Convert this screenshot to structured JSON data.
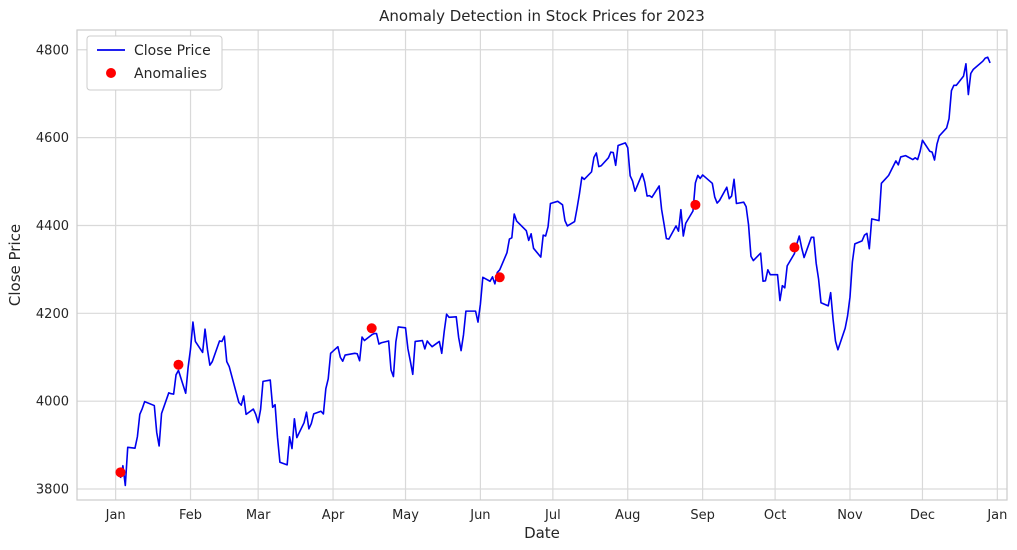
{
  "chart_data": {
    "type": "line",
    "title": "Anomaly Detection in Stock Prices for 2023",
    "xlabel": "Date",
    "ylabel": "Close Price",
    "x_ticks": [
      "Jan",
      "Feb",
      "Mar",
      "Apr",
      "May",
      "Jun",
      "Jul",
      "Aug",
      "Sep",
      "Oct",
      "Nov",
      "Dec",
      "Jan"
    ],
    "x_tick_dates": [
      "2023-01-01",
      "2023-02-01",
      "2023-03-01",
      "2023-04-01",
      "2023-05-01",
      "2023-06-01",
      "2023-07-01",
      "2023-08-01",
      "2023-09-01",
      "2023-10-01",
      "2023-11-01",
      "2023-12-01",
      "2024-01-01"
    ],
    "y_ticks": [
      3800,
      4000,
      4200,
      4400,
      4600,
      4800
    ],
    "xlim": [
      "2022-12-16",
      "2024-01-05"
    ],
    "ylim": [
      3775,
      4845
    ],
    "grid": true,
    "legend": "top-left",
    "series": [
      {
        "name": "Close Price",
        "color": "#0000ee",
        "points": [
          [
            "2023-01-03",
            3825
          ],
          [
            "2023-01-04",
            3853
          ],
          [
            "2023-01-05",
            3808
          ],
          [
            "2023-01-06",
            3895
          ],
          [
            "2023-01-09",
            3893
          ],
          [
            "2023-01-10",
            3919
          ],
          [
            "2023-01-11",
            3970
          ],
          [
            "2023-01-12",
            3983
          ],
          [
            "2023-01-13",
            3999
          ],
          [
            "2023-01-17",
            3990
          ],
          [
            "2023-01-18",
            3929
          ],
          [
            "2023-01-19",
            3898
          ],
          [
            "2023-01-20",
            3972
          ],
          [
            "2023-01-23",
            4019
          ],
          [
            "2023-01-24",
            4017
          ],
          [
            "2023-01-25",
            4016
          ],
          [
            "2023-01-26",
            4060
          ],
          [
            "2023-01-27",
            4070
          ],
          [
            "2023-01-30",
            4018
          ],
          [
            "2023-01-31",
            4077
          ],
          [
            "2023-02-01",
            4119
          ],
          [
            "2023-02-02",
            4180
          ],
          [
            "2023-02-03",
            4136
          ],
          [
            "2023-02-06",
            4111
          ],
          [
            "2023-02-07",
            4164
          ],
          [
            "2023-02-08",
            4118
          ],
          [
            "2023-02-09",
            4082
          ],
          [
            "2023-02-10",
            4090
          ],
          [
            "2023-02-13",
            4137
          ],
          [
            "2023-02-14",
            4136
          ],
          [
            "2023-02-15",
            4148
          ],
          [
            "2023-02-16",
            4090
          ],
          [
            "2023-02-17",
            4079
          ],
          [
            "2023-02-21",
            3997
          ],
          [
            "2023-02-22",
            3991
          ],
          [
            "2023-02-23",
            4012
          ],
          [
            "2023-02-24",
            3970
          ],
          [
            "2023-02-27",
            3982
          ],
          [
            "2023-02-28",
            3970
          ],
          [
            "2023-03-01",
            3951
          ],
          [
            "2023-03-02",
            3981
          ],
          [
            "2023-03-03",
            4045
          ],
          [
            "2023-03-06",
            4048
          ],
          [
            "2023-03-07",
            3986
          ],
          [
            "2023-03-08",
            3992
          ],
          [
            "2023-03-09",
            3918
          ],
          [
            "2023-03-10",
            3861
          ],
          [
            "2023-03-13",
            3855
          ],
          [
            "2023-03-14",
            3919
          ],
          [
            "2023-03-15",
            3892
          ],
          [
            "2023-03-16",
            3960
          ],
          [
            "2023-03-17",
            3917
          ],
          [
            "2023-03-20",
            3951
          ],
          [
            "2023-03-21",
            3975
          ],
          [
            "2023-03-22",
            3937
          ],
          [
            "2023-03-23",
            3949
          ],
          [
            "2023-03-24",
            3971
          ],
          [
            "2023-03-27",
            3977
          ],
          [
            "2023-03-28",
            3971
          ],
          [
            "2023-03-29",
            4028
          ],
          [
            "2023-03-30",
            4051
          ],
          [
            "2023-03-31",
            4109
          ],
          [
            "2023-04-03",
            4124
          ],
          [
            "2023-04-04",
            4100
          ],
          [
            "2023-04-05",
            4091
          ],
          [
            "2023-04-06",
            4105
          ],
          [
            "2023-04-10",
            4109
          ],
          [
            "2023-04-11",
            4108
          ],
          [
            "2023-04-12",
            4092
          ],
          [
            "2023-04-13",
            4146
          ],
          [
            "2023-04-14",
            4138
          ],
          [
            "2023-04-17",
            4151
          ],
          [
            "2023-04-18",
            4154
          ],
          [
            "2023-04-19",
            4154
          ],
          [
            "2023-04-20",
            4130
          ],
          [
            "2023-04-21",
            4133
          ],
          [
            "2023-04-24",
            4137
          ],
          [
            "2023-04-25",
            4071
          ],
          [
            "2023-04-26",
            4056
          ],
          [
            "2023-04-27",
            4135
          ],
          [
            "2023-04-28",
            4169
          ],
          [
            "2023-05-01",
            4167
          ],
          [
            "2023-05-02",
            4119
          ],
          [
            "2023-05-03",
            4091
          ],
          [
            "2023-05-04",
            4061
          ],
          [
            "2023-05-05",
            4136
          ],
          [
            "2023-05-08",
            4138
          ],
          [
            "2023-05-09",
            4119
          ],
          [
            "2023-05-10",
            4137
          ],
          [
            "2023-05-11",
            4130
          ],
          [
            "2023-05-12",
            4124
          ],
          [
            "2023-05-15",
            4136
          ],
          [
            "2023-05-16",
            4109
          ],
          [
            "2023-05-17",
            4158
          ],
          [
            "2023-05-18",
            4198
          ],
          [
            "2023-05-19",
            4191
          ],
          [
            "2023-05-22",
            4192
          ],
          [
            "2023-05-23",
            4145
          ],
          [
            "2023-05-24",
            4115
          ],
          [
            "2023-05-25",
            4151
          ],
          [
            "2023-05-26",
            4205
          ],
          [
            "2023-05-30",
            4205
          ],
          [
            "2023-05-31",
            4180
          ],
          [
            "2023-06-01",
            4221
          ],
          [
            "2023-06-02",
            4282
          ],
          [
            "2023-06-05",
            4273
          ],
          [
            "2023-06-06",
            4283
          ],
          [
            "2023-06-07",
            4267
          ],
          [
            "2023-06-08",
            4293
          ],
          [
            "2023-06-09",
            4299
          ],
          [
            "2023-06-12",
            4338
          ],
          [
            "2023-06-13",
            4369
          ],
          [
            "2023-06-14",
            4372
          ],
          [
            "2023-06-15",
            4426
          ],
          [
            "2023-06-16",
            4410
          ],
          [
            "2023-06-20",
            4388
          ],
          [
            "2023-06-21",
            4366
          ],
          [
            "2023-06-22",
            4381
          ],
          [
            "2023-06-23",
            4348
          ],
          [
            "2023-06-26",
            4328
          ],
          [
            "2023-06-27",
            4378
          ],
          [
            "2023-06-28",
            4376
          ],
          [
            "2023-06-29",
            4397
          ],
          [
            "2023-06-30",
            4450
          ],
          [
            "2023-07-03",
            4455
          ],
          [
            "2023-07-05",
            4447
          ],
          [
            "2023-07-06",
            4411
          ],
          [
            "2023-07-07",
            4399
          ],
          [
            "2023-07-10",
            4409
          ],
          [
            "2023-07-11",
            4439
          ],
          [
            "2023-07-12",
            4472
          ],
          [
            "2023-07-13",
            4510
          ],
          [
            "2023-07-14",
            4505
          ],
          [
            "2023-07-17",
            4522
          ],
          [
            "2023-07-18",
            4555
          ],
          [
            "2023-07-19",
            4565
          ],
          [
            "2023-07-20",
            4534
          ],
          [
            "2023-07-21",
            4536
          ],
          [
            "2023-07-24",
            4554
          ],
          [
            "2023-07-25",
            4567
          ],
          [
            "2023-07-26",
            4566
          ],
          [
            "2023-07-27",
            4537
          ],
          [
            "2023-07-28",
            4582
          ],
          [
            "2023-07-31",
            4588
          ],
          [
            "2023-08-01",
            4577
          ],
          [
            "2023-08-02",
            4513
          ],
          [
            "2023-08-03",
            4501
          ],
          [
            "2023-08-04",
            4478
          ],
          [
            "2023-08-07",
            4518
          ],
          [
            "2023-08-08",
            4499
          ],
          [
            "2023-08-09",
            4467
          ],
          [
            "2023-08-10",
            4468
          ],
          [
            "2023-08-11",
            4464
          ],
          [
            "2023-08-14",
            4490
          ],
          [
            "2023-08-15",
            4437
          ],
          [
            "2023-08-16",
            4404
          ],
          [
            "2023-08-17",
            4370
          ],
          [
            "2023-08-18",
            4369
          ],
          [
            "2023-08-21",
            4399
          ],
          [
            "2023-08-22",
            4387
          ],
          [
            "2023-08-23",
            4436
          ],
          [
            "2023-08-24",
            4376
          ],
          [
            "2023-08-25",
            4405
          ],
          [
            "2023-08-28",
            4433
          ],
          [
            "2023-08-29",
            4497
          ],
          [
            "2023-08-30",
            4514
          ],
          [
            "2023-08-31",
            4507
          ],
          [
            "2023-09-01",
            4515
          ],
          [
            "2023-09-05",
            4496
          ],
          [
            "2023-09-06",
            4465
          ],
          [
            "2023-09-07",
            4451
          ],
          [
            "2023-09-08",
            4457
          ],
          [
            "2023-09-11",
            4487
          ],
          [
            "2023-09-12",
            4461
          ],
          [
            "2023-09-13",
            4467
          ],
          [
            "2023-09-14",
            4505
          ],
          [
            "2023-09-15",
            4450
          ],
          [
            "2023-09-18",
            4453
          ],
          [
            "2023-09-19",
            4443
          ],
          [
            "2023-09-20",
            4402
          ],
          [
            "2023-09-21",
            4330
          ],
          [
            "2023-09-22",
            4320
          ],
          [
            "2023-09-25",
            4337
          ],
          [
            "2023-09-26",
            4273
          ],
          [
            "2023-09-27",
            4274
          ],
          [
            "2023-09-28",
            4299
          ],
          [
            "2023-09-29",
            4288
          ],
          [
            "2023-10-02",
            4288
          ],
          [
            "2023-10-03",
            4229
          ],
          [
            "2023-10-04",
            4263
          ],
          [
            "2023-10-05",
            4258
          ],
          [
            "2023-10-06",
            4308
          ],
          [
            "2023-10-09",
            4336
          ],
          [
            "2023-10-10",
            4358
          ],
          [
            "2023-10-11",
            4376
          ],
          [
            "2023-10-12",
            4349
          ],
          [
            "2023-10-13",
            4327
          ],
          [
            "2023-10-16",
            4373
          ],
          [
            "2023-10-17",
            4373
          ],
          [
            "2023-10-18",
            4314
          ],
          [
            "2023-10-19",
            4278
          ],
          [
            "2023-10-20",
            4224
          ],
          [
            "2023-10-23",
            4217
          ],
          [
            "2023-10-24",
            4247
          ],
          [
            "2023-10-25",
            4186
          ],
          [
            "2023-10-26",
            4137
          ],
          [
            "2023-10-27",
            4117
          ],
          [
            "2023-10-30",
            4166
          ],
          [
            "2023-10-31",
            4194
          ],
          [
            "2023-11-01",
            4237
          ],
          [
            "2023-11-02",
            4317
          ],
          [
            "2023-11-03",
            4358
          ],
          [
            "2023-11-06",
            4365
          ],
          [
            "2023-11-07",
            4378
          ],
          [
            "2023-11-08",
            4382
          ],
          [
            "2023-11-09",
            4347
          ],
          [
            "2023-11-10",
            4415
          ],
          [
            "2023-11-13",
            4411
          ],
          [
            "2023-11-14",
            4496
          ],
          [
            "2023-11-15",
            4502
          ],
          [
            "2023-11-16",
            4508
          ],
          [
            "2023-11-17",
            4514
          ],
          [
            "2023-11-20",
            4547
          ],
          [
            "2023-11-21",
            4538
          ],
          [
            "2023-11-22",
            4556
          ],
          [
            "2023-11-24",
            4559
          ],
          [
            "2023-11-27",
            4550
          ],
          [
            "2023-11-28",
            4554
          ],
          [
            "2023-11-29",
            4550
          ],
          [
            "2023-11-30",
            4568
          ],
          [
            "2023-12-01",
            4594
          ],
          [
            "2023-12-04",
            4569
          ],
          [
            "2023-12-05",
            4567
          ],
          [
            "2023-12-06",
            4549
          ],
          [
            "2023-12-07",
            4585
          ],
          [
            "2023-12-08",
            4604
          ],
          [
            "2023-12-11",
            4622
          ],
          [
            "2023-12-12",
            4643
          ],
          [
            "2023-12-13",
            4707
          ],
          [
            "2023-12-14",
            4719
          ],
          [
            "2023-12-15",
            4719
          ],
          [
            "2023-12-18",
            4740
          ],
          [
            "2023-12-19",
            4768
          ],
          [
            "2023-12-20",
            4698
          ],
          [
            "2023-12-21",
            4746
          ],
          [
            "2023-12-22",
            4755
          ],
          [
            "2023-12-26",
            4774
          ],
          [
            "2023-12-27",
            4781
          ],
          [
            "2023-12-28",
            4783
          ],
          [
            "2023-12-29",
            4770
          ]
        ]
      }
    ],
    "anomalies": {
      "name": "Anomalies",
      "color": "#ff0000",
      "points": [
        [
          "2023-01-03",
          3838
        ],
        [
          "2023-01-27",
          4083
        ],
        [
          "2023-04-17",
          4166
        ],
        [
          "2023-06-09",
          4282
        ],
        [
          "2023-08-29",
          4447
        ],
        [
          "2023-10-09",
          4350
        ]
      ]
    }
  }
}
